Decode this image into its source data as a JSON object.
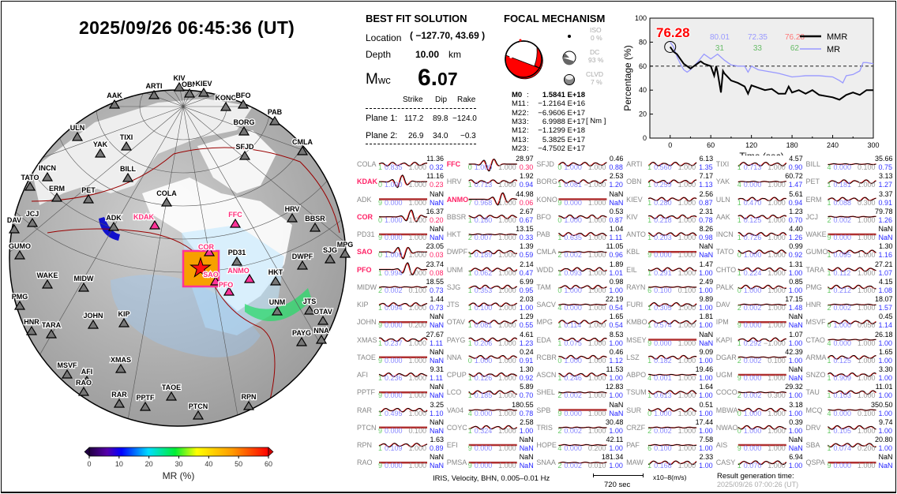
{
  "title": "2025/09/26  06:45:36 (UT)",
  "best_fit": {
    "heading": "BEST FIT SOLUTION",
    "location_label": "Location",
    "location_value": "( −127.70,  43.69 )",
    "depth_label": "Depth",
    "depth_value": "10.00",
    "depth_unit": "km",
    "mw_label": "Mwc",
    "mw_int": "6.",
    "mw_dec": "07",
    "columns": [
      "Strike",
      "Dip",
      "Rake"
    ],
    "planes": [
      {
        "label": "Plane 1:",
        "strike": "117.2",
        "dip": "89.8",
        "rake": "−124.0"
      },
      {
        "label": "Plane 2:",
        "strike": "26.9",
        "dip": "34.0",
        "rake": "−0.3"
      }
    ]
  },
  "focal": {
    "heading": "FOCAL MECHANISM",
    "iso_label": "ISO",
    "iso_value": "0  %",
    "dc_label": "DC",
    "dc_value": "93 %",
    "clvd_label": "CLVD",
    "clvd_value": "7  %",
    "unit": "[ Nm ]",
    "tensor": [
      {
        "k": "M0",
        "sep": ":",
        "v": "1.5841 E+18"
      },
      {
        "k": "M11",
        "sep": ":",
        "v": "−1.2164 E+16"
      },
      {
        "k": "M22",
        "sep": ":",
        "v": "−6.9606 E+17"
      },
      {
        "k": "M33",
        "sep": ":",
        "v": "6.9988 E+17"
      },
      {
        "k": "M12",
        "sep": ":",
        "v": "−1.1299 E+18"
      },
      {
        "k": "M13",
        "sep": ":",
        "v": "5.3825 E+17"
      },
      {
        "k": "M23",
        "sep": ":",
        "v": "−4.7502 E+17"
      }
    ]
  },
  "chart_data": {
    "type": "line",
    "xlabel": "Time (sec)",
    "ylabel": "Percentage (%)",
    "xlim": [
      -30,
      300
    ],
    "ylim": [
      0,
      100
    ],
    "xticks": [
      0,
      60,
      120,
      180,
      240,
      300
    ],
    "yticks": [
      0,
      20,
      40,
      60,
      80,
      100
    ],
    "reference_line": 60,
    "legend_position": "top-right",
    "highlight_label": "76.28",
    "annotations_top": [
      "80.01",
      "72.35",
      "76.28"
    ],
    "annotations_bottom": [
      "31",
      "33",
      "62"
    ],
    "series": [
      {
        "name": "MMR",
        "color": "#000000",
        "x": [
          0,
          5,
          10,
          15,
          20,
          25,
          30,
          35,
          40,
          45,
          50,
          55,
          60,
          65,
          68,
          70,
          75,
          78,
          80,
          90,
          100,
          110,
          115,
          120,
          130,
          140,
          150,
          160,
          170,
          175,
          180,
          190,
          200,
          210,
          220,
          230,
          240,
          250,
          260,
          270,
          280,
          290,
          300
        ],
        "y": [
          76,
          72,
          70,
          66,
          62,
          60,
          58,
          60,
          62,
          64,
          62,
          61,
          60,
          52,
          60,
          55,
          38,
          56,
          54,
          48,
          46,
          43,
          37,
          44,
          42,
          40,
          41,
          37,
          37,
          43,
          38,
          40,
          37,
          40,
          36,
          35,
          34,
          32,
          36,
          38,
          36,
          40,
          40
        ]
      },
      {
        "name": "MR",
        "color": "#9999ff",
        "x": [
          0,
          5,
          10,
          15,
          20,
          25,
          30,
          40,
          50,
          60,
          65,
          70,
          80,
          90,
          100,
          110,
          115,
          120,
          130,
          140,
          160,
          180,
          200,
          220,
          240,
          250,
          255,
          260,
          270,
          280,
          285,
          290,
          300
        ],
        "y": [
          80,
          76,
          68,
          62,
          57,
          55,
          57,
          63,
          70,
          66,
          68,
          70,
          65,
          61,
          60,
          60,
          55,
          60,
          57,
          56,
          54,
          51,
          52,
          52,
          51,
          48,
          46,
          52,
          53,
          56,
          63,
          63,
          62
        ]
      }
    ],
    "colors": {
      "highlight": "#ff0000",
      "top": "#9999ff",
      "top_last": "#ff7777",
      "bottom": "#66bb66"
    }
  },
  "stations_grid": [
    [
      [
        "COLA",
        "11.36",
        "1",
        "0.835",
        "1.000",
        "0.32",
        0
      ],
      [
        "KDAK",
        "11.16",
        "0",
        "1.000",
        "1.000",
        "0.23",
        1
      ],
      [
        "ADK",
        "NaN",
        "9",
        "0.000",
        "1.000",
        "NaN",
        0
      ],
      [
        "COR",
        "16.37",
        "0",
        "1.000",
        "1.000",
        "0.20",
        1
      ],
      [
        "PD31",
        "NaN",
        "9",
        "0.000",
        "1.000",
        "NaN",
        0
      ],
      [
        "SAO",
        "23.05",
        "0",
        "1.000",
        "1.000",
        "0.03",
        1
      ],
      [
        "PFO",
        "23.74",
        "1",
        "0.994",
        "1.000",
        "0.08",
        1
      ],
      [
        "MIDW",
        "18.55",
        "2",
        "0.002",
        "0.100",
        "0.73",
        0
      ],
      [
        "KIP",
        "1.44",
        "1",
        "0.094",
        "1.000",
        "0.73",
        0
      ],
      [
        "JOHN",
        "NaN",
        "9",
        "0.000",
        "0.200",
        "NaN",
        0
      ],
      [
        "XMAS",
        "27.67",
        "1",
        "0.237",
        "1.000",
        "1.11",
        0
      ],
      [
        "TAOE",
        "NaN",
        "9",
        "0.000",
        "1.000",
        "NaN",
        0
      ],
      [
        "AFI",
        "9.31",
        "1",
        "0.236",
        "1.000",
        "1.11",
        0
      ],
      [
        "PPTF",
        "NaN",
        "9",
        "0.000",
        "1.000",
        "NaN",
        0
      ],
      [
        "RAR",
        "3.25",
        "1",
        "0.495",
        "1.000",
        "1.10",
        0
      ],
      [
        "PTCN",
        "NaN",
        "9",
        "0.000",
        "0.100",
        "NaN",
        0
      ],
      [
        "RPN",
        "1.63",
        "1",
        "0.109",
        "1.000",
        "0.89",
        0
      ],
      [
        "RAO",
        "NaN",
        "9",
        "0.000",
        "1.000",
        "NaN",
        0
      ]
    ],
    [
      [
        "FFC",
        "28.97",
        "0",
        "1.000",
        "1.000",
        "0.30",
        1
      ],
      [
        "HRV",
        "1.92",
        "1",
        "0.713",
        "1.000",
        "0.94",
        0
      ],
      [
        "ANMO",
        "44.98",
        "7",
        "0.968",
        "1.000",
        "0.06",
        1
      ],
      [
        "BBSR",
        "2.67",
        "1",
        "0.180",
        "1.000",
        "0.67",
        0
      ],
      [
        "HKT",
        "13.15",
        "2",
        "0.007",
        "1.000",
        "0.33",
        0
      ],
      [
        "DWPF",
        "1.39",
        "1",
        "0.189",
        "1.000",
        "0.59",
        0
      ],
      [
        "UNM",
        "2.14",
        "1",
        "0.062",
        "1.000",
        "0.47",
        0
      ],
      [
        "SJG",
        "6.99",
        "1",
        "0.353",
        "1.000",
        "0.95",
        0
      ],
      [
        "JTS",
        "2.03",
        "1",
        "0.100",
        "1.000",
        "1.00",
        0
      ],
      [
        "OTAV",
        "1.29",
        "1",
        "0.081",
        "1.000",
        "0.55",
        0
      ],
      [
        "PAYG",
        "4.61",
        "1",
        "0.206",
        "1.000",
        "1.23",
        0
      ],
      [
        "NNA",
        "0.24",
        "0",
        "1.000",
        "1.000",
        "0.91",
        0
      ],
      [
        "CPUP",
        "1.30",
        "1",
        "0.126",
        "1.000",
        "0.92",
        0
      ],
      [
        "LCO",
        "5.89",
        "1",
        "0.185",
        "1.000",
        "0.70",
        0
      ],
      [
        "VA04",
        "180.55",
        "4",
        "0.000",
        "1.000",
        "0.78",
        0
      ],
      [
        "COYC",
        "2.58",
        "1",
        "0.324",
        "1.000",
        "1.00",
        0
      ],
      [
        "EFI",
        "NaN",
        "9",
        "0.000",
        "1.000",
        "NaN",
        0
      ],
      [
        "PMSA",
        "NaN",
        "9",
        "0.000",
        "1.000",
        "NaN",
        0
      ]
    ],
    [
      [
        "SFJD",
        "0.46",
        "0",
        "1.000",
        "1.000",
        "0.88",
        0
      ],
      [
        "BORG",
        "2.53",
        "1",
        "0.081",
        "−1.000",
        "1.20",
        0
      ],
      [
        "KONO",
        "NaN",
        "9",
        "0.000",
        "1.000",
        "NaN",
        0
      ],
      [
        "BFO",
        "0.53",
        "0",
        "1.000",
        "1.000",
        "0.87",
        0
      ],
      [
        "PAB",
        "1.04",
        "1",
        "0.635",
        "1.000",
        "1.11",
        0
      ],
      [
        "CMLA",
        "11.05",
        "2",
        "0.002",
        "1.000",
        "0.96",
        0
      ],
      [
        "WDD",
        "1.89",
        "1",
        "0.093",
        "1.000",
        "1.01",
        0
      ],
      [
        "TAM",
        "0.98",
        "0",
        "1.000",
        "1.000",
        "1.00",
        0
      ],
      [
        "SACV",
        "22.19",
        "4",
        "0.000",
        "1.000",
        "0.54",
        0
      ],
      [
        "MPG",
        "1.65",
        "1",
        "0.114",
        "1.000",
        "0.54",
        0
      ],
      [
        "EDA",
        "8.53",
        "1",
        "0.075",
        "1.000",
        "1.00",
        0
      ],
      [
        "RCBR",
        "0.46",
        "0",
        "1.000",
        "1.000",
        "1.12",
        0
      ],
      [
        "ASCN",
        "11.53",
        "1",
        "0.246",
        "1.000",
        "1.00",
        0
      ],
      [
        "SHEL",
        "12.83",
        "2",
        "0.002",
        "1.000",
        "1.00",
        0
      ],
      [
        "SPB",
        "NaN",
        "9",
        "0.000",
        "1.000",
        "NaN",
        0
      ],
      [
        "TRIS",
        "30.48",
        "2",
        "0.002",
        "1.000",
        "1.00",
        0
      ],
      [
        "HOPE",
        "42.11",
        "4",
        "0.000",
        "0.200",
        "1.00",
        0
      ],
      [
        "SNAA",
        "181.34",
        "2",
        "0.002",
        "0.010",
        "1.00",
        0
      ]
    ],
    [
      [
        "ARTI",
        "6.13",
        "1",
        "0.560",
        "1.000",
        "1.35",
        0
      ],
      [
        "OBN",
        "7.17",
        "1",
        "0.259",
        "1.000",
        "1.13",
        0
      ],
      [
        "KIEV",
        "2.56",
        "1",
        "0.280",
        "1.000",
        "0.87",
        0
      ],
      [
        "KIV",
        "2.31",
        "1",
        "0.218",
        "1.000",
        "0.78",
        0
      ],
      [
        "ANTO",
        "8.26",
        "1",
        "0.203",
        "1.000",
        "0.98",
        0
      ],
      [
        "KBL",
        "NaN",
        "9",
        "0.000",
        "1.000",
        "NaN",
        0
      ],
      [
        "EIL",
        "1.47",
        "1",
        "0.291",
        "1.000",
        "1.00",
        0
      ],
      [
        "RAYN",
        "2.49",
        "6",
        "0.100",
        "0.100",
        "1.00",
        0
      ],
      [
        "FURI",
        "9.89",
        "1",
        "0.305",
        "1.000",
        "1.00",
        0
      ],
      [
        "KMBO",
        "1.81",
        "1",
        "0.574",
        "1.000",
        "1.00",
        0
      ],
      [
        "MSEY",
        "NaN",
        "9",
        "0.000",
        "1.000",
        "NaN",
        0
      ],
      [
        "LSZ",
        "9.09",
        "1",
        "0.182",
        "1.000",
        "1.00",
        0
      ],
      [
        "ABPO",
        "19.46",
        "4",
        "0.001",
        "1.000",
        "1.00",
        0
      ],
      [
        "TSUM",
        "1.64",
        "1",
        "0.613",
        "1.000",
        "1.00",
        0
      ],
      [
        "SUR",
        "0.51",
        "0",
        "1.000",
        "1.000",
        "1.00",
        0
      ],
      [
        "CRZF",
        "17.44",
        "2",
        "0.002",
        "1.000",
        "1.00",
        0
      ],
      [
        "PAF",
        "7.58",
        "6",
        "0.100",
        "1.000",
        "1.00",
        0
      ],
      [
        "MAW",
        "2.33",
        "1",
        "0.168",
        "1.000",
        "1.00",
        0
      ]
    ],
    [
      [
        "TIXI",
        "4.57",
        "1",
        "0.713",
        "1.000",
        "0.90",
        0
      ],
      [
        "YAK",
        "60.72",
        "4",
        "0.000",
        "1.000",
        "1.47",
        0
      ],
      [
        "ULN",
        "5.61",
        "1",
        "0.470",
        "1.000",
        "0.94",
        0
      ],
      [
        "AAK",
        "1.23",
        "1",
        "0.125",
        "1.000",
        "0.70",
        0
      ],
      [
        "INCN",
        "4.40",
        "1",
        "0.726",
        "1.000",
        "1.26",
        0
      ],
      [
        "TATO",
        "0.99",
        "0",
        "1.000",
        "1.000",
        "0.92",
        0
      ],
      [
        "CHTO",
        "1.31",
        "1",
        "0.224",
        "1.000",
        "1.00",
        0
      ],
      [
        "PALK",
        "0.85",
        "0",
        "1.000",
        "1.000",
        "1.00",
        0
      ],
      [
        "DAV",
        "17.15",
        "2",
        "0.002",
        "1.000",
        "1.48",
        0
      ],
      [
        "IPM",
        "NaN",
        "9",
        "0.000",
        "1.000",
        "NaN",
        0
      ],
      [
        "KAPI",
        "1.07",
        "1",
        "0.292",
        "−1.000",
        "1.00",
        0
      ],
      [
        "DGAR",
        "42.39",
        "2",
        "0.002",
        "0.100",
        "1.00",
        0
      ],
      [
        "UGM",
        "NaN",
        "9",
        "0.000",
        "1.000",
        "NaN",
        0
      ],
      [
        "COCO",
        "29.32",
        "2",
        "0.002",
        "0.300",
        "1.00",
        0
      ],
      [
        "MBWA",
        "3.18",
        "0",
        "1.000",
        "1.000",
        "1.00",
        0
      ],
      [
        "NWAO",
        "0.39",
        "0",
        "1.000",
        "1.000",
        "1.00",
        0
      ],
      [
        "AIS",
        "NaN",
        "9",
        "0.000",
        "1.000",
        "NaN",
        0
      ],
      [
        "CASY",
        "6.94",
        "1",
        "0.070",
        "1.000",
        "1.00",
        0
      ]
    ],
    [
      [
        "BILL",
        "35.66",
        "4",
        "0.000",
        "0.100",
        "0.75",
        0
      ],
      [
        "PET",
        "3.13",
        "1",
        "0.181",
        "1.000",
        "1.27",
        0
      ],
      [
        "ERM",
        "3.37",
        "1",
        "0.088",
        "0.300",
        "0.91",
        0
      ],
      [
        "JCJ",
        "79.78",
        "2",
        "0.002",
        "1.000",
        "1.26",
        0
      ],
      [
        "WAKE",
        "NaN",
        "9",
        "0.000",
        "1.000",
        "NaN",
        0
      ],
      [
        "GUMO",
        "1.30",
        "1",
        "0.095",
        "1.000",
        "1.16",
        0
      ],
      [
        "TARA",
        "27.21",
        "1",
        "0.112",
        "1.000",
        "1.07",
        0
      ],
      [
        "PMG",
        "4.15",
        "1",
        "0.212",
        "1.000",
        "1.08",
        0
      ],
      [
        "HNR",
        "18.07",
        "2",
        "0.002",
        "1.000",
        "1.57",
        0
      ],
      [
        "MSVF",
        "0.45",
        "0",
        "1.000",
        "0.050",
        "1.14",
        0
      ],
      [
        "CTAO",
        "26.18",
        "4",
        "0.000",
        "1.000",
        "1.00",
        0
      ],
      [
        "ARMA",
        "1.65",
        "1",
        "0.125",
        "1.000",
        "1.00",
        0
      ],
      [
        "SNZO",
        "3.30",
        "1",
        "0.909",
        "1.000",
        "1.00",
        0
      ],
      [
        "TAU",
        "11.01",
        "1",
        "0.103",
        "1.000",
        "1.00",
        0
      ],
      [
        "MCQ",
        "350.50",
        "4",
        "0.000",
        "0.100",
        "1.00",
        0
      ],
      [
        "DRV",
        "9.74",
        "1",
        "0.105",
        "1.000",
        "1.00",
        0
      ],
      [
        "SBA",
        "20.80",
        "1",
        "0.074",
        "0.200",
        "1.00",
        0
      ],
      [
        "QSPA",
        "NaN",
        "9",
        "0.000",
        "1.000",
        "NaN",
        0
      ]
    ]
  ],
  "footer": {
    "source": "IRIS, Velocity,   BHN,  0.005–0.01 Hz",
    "scale": "720 sec",
    "units": "x10–8(m/s)",
    "gen_label": "Result generation time:",
    "gen_time": "2025/09/26 07:00:26 (UT)"
  },
  "map": {
    "stations": [
      "AAK",
      "ARTI",
      "KIV",
      "OBN",
      "KIEV",
      "KONO",
      "BFO",
      "PAB",
      "BORG",
      "SFJD",
      "CMLA",
      "ULN",
      "TIXI",
      "YAK",
      "INCN",
      "BILL",
      "TATO",
      "ERM",
      "PET",
      "COLA",
      "ADK",
      "KDAK",
      "FFC",
      "HRV",
      "BBSR",
      "DAV",
      "JCJ",
      "GUMO",
      "SJG",
      "MPG",
      "PD31",
      "DWPF",
      "COR",
      "SAO",
      "PFO",
      "ANMO",
      "HKT",
      "WAKE",
      "MIDW",
      "PMG",
      "UNM",
      "JTS",
      "OTAV",
      "HNR",
      "TARA",
      "JOHN",
      "KIP",
      "PAYG",
      "NNA",
      "XMAS",
      "MSVF",
      "AFI",
      "RAO",
      "RAR",
      "PPTF",
      "TAOE",
      "PTCN",
      "RPN"
    ],
    "highlighted": [
      "KDAK",
      "FFC",
      "COR",
      "SAO",
      "PFO",
      "ANMO"
    ],
    "colorbar_label": "MR (%)",
    "colorbar_ticks": [
      "0",
      "10",
      "20",
      "30",
      "40",
      "50",
      "60"
    ]
  }
}
